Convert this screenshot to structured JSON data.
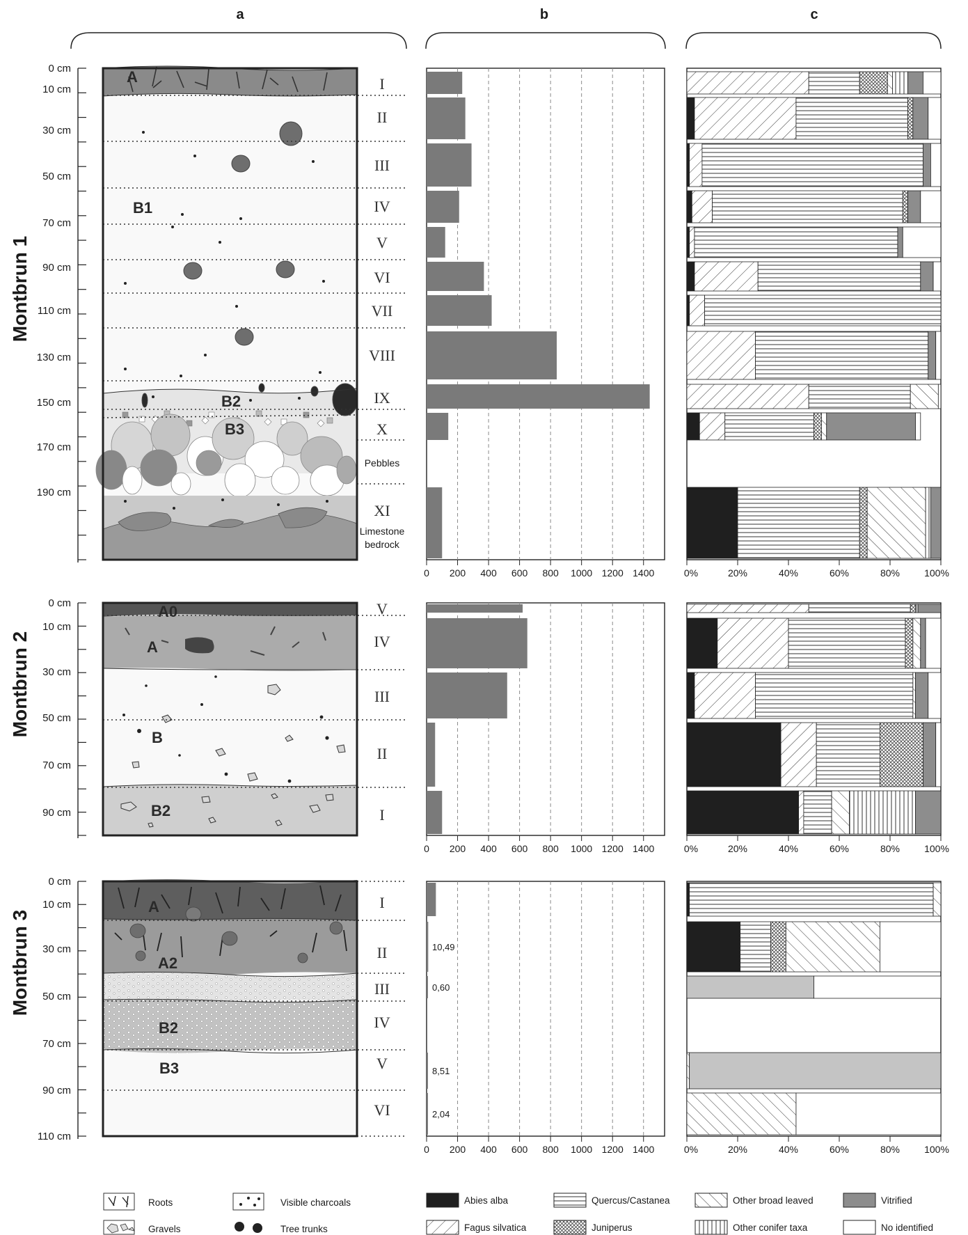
{
  "columns": {
    "a": "a",
    "b": "b",
    "c": "c"
  },
  "colors": {
    "abies": "#1f1f1f",
    "vitrified": "#8d8d8d",
    "count_bar": "#7a7a7a",
    "vitrified_m3": "#c4c4c4",
    "no_identified": "#ffffff"
  },
  "sites": [
    {
      "title": "Montbrun 1",
      "depth_labels": [
        {
          "text": "0 cm",
          "cm": 0
        },
        {
          "text": "10 cm",
          "cm": 10
        },
        {
          "text": "30 cm",
          "cm": 30
        },
        {
          "text": "50 cm",
          "cm": 50
        },
        {
          "text": "70 cm",
          "cm": 70
        },
        {
          "text": "90 cm",
          "cm": 90
        },
        {
          "text": "110 cm",
          "cm": 110
        },
        {
          "text": "130 cm",
          "cm": 130
        },
        {
          "text": "150 cm",
          "cm": 150
        },
        {
          "text": "170 cm",
          "cm": 170
        },
        {
          "text": "190 cm",
          "cm": 190
        }
      ],
      "horizons": [
        "A",
        "B1",
        "B2",
        "B3"
      ],
      "levels": [
        "I",
        "II",
        "III",
        "IV",
        "V",
        "VI",
        "VII",
        "VIII",
        "IX",
        "X",
        "XI"
      ],
      "notes": {
        "pebbles": "Pebbles",
        "limestone_1": "Limestone",
        "limestone_2": "bedrock"
      }
    },
    {
      "title": "Montbrun 2",
      "depth_labels": [
        {
          "text": "0 cm",
          "cm": 0
        },
        {
          "text": "10 cm",
          "cm": 10
        },
        {
          "text": "30 cm",
          "cm": 30
        },
        {
          "text": "50 cm",
          "cm": 50
        },
        {
          "text": "70 cm",
          "cm": 70
        },
        {
          "text": "90 cm",
          "cm": 90
        }
      ],
      "horizons": [
        "A0",
        "A",
        "B",
        "B2"
      ],
      "levels": [
        "V",
        "IV",
        "III",
        "II",
        "I"
      ]
    },
    {
      "title": "Montbrun 3",
      "depth_labels": [
        {
          "text": "0 cm",
          "cm": 0
        },
        {
          "text": "10 cm",
          "cm": 10
        },
        {
          "text": "30 cm",
          "cm": 30
        },
        {
          "text": "50 cm",
          "cm": 50
        },
        {
          "text": "70 cm",
          "cm": 70
        },
        {
          "text": "90 cm",
          "cm": 90
        },
        {
          "text": "110 cm",
          "cm": 110
        }
      ],
      "horizons": [
        "A",
        "A2",
        "B2",
        "B3"
      ],
      "levels": [
        "I",
        "II",
        "III",
        "IV",
        "V",
        "VI"
      ]
    }
  ],
  "chart_data": [
    {
      "type": "bar",
      "site": "Montbrun 1",
      "categories": [
        "I",
        "II",
        "III",
        "IV",
        "V",
        "VI",
        "VII",
        "VIII",
        "IX",
        "X",
        "XI"
      ],
      "values": [
        230,
        250,
        290,
        210,
        120,
        370,
        420,
        840,
        1440,
        140,
        100
      ],
      "xlim": [
        0,
        1500
      ],
      "xticks": [
        "0",
        "200",
        "400",
        "600",
        "800",
        "1000",
        "1200",
        "1400"
      ],
      "grid": true
    },
    {
      "type": "bar",
      "site": "Montbrun 2",
      "categories": [
        "V",
        "IV",
        "III",
        "II",
        "I"
      ],
      "values": [
        620,
        650,
        520,
        55,
        100
      ],
      "xlim": [
        0,
        1500
      ],
      "xticks": [
        "0",
        "200",
        "400",
        "600",
        "800",
        "1000",
        "1200",
        "1400"
      ],
      "grid": true
    },
    {
      "type": "bar",
      "site": "Montbrun 3",
      "categories": [
        "I",
        "II",
        "III",
        "IV",
        "V",
        "VI"
      ],
      "values": [
        60,
        10.49,
        0.6,
        0,
        8.51,
        2.04
      ],
      "data_labels": [
        "",
        "10,49",
        "0,60",
        "",
        "8,51",
        "2,04"
      ],
      "xlim": [
        0,
        1500
      ],
      "xticks": [
        "0",
        "200",
        "400",
        "600",
        "800",
        "1000",
        "1200",
        "1400"
      ],
      "grid": true
    },
    {
      "type": "bar",
      "stacked": true,
      "site": "Montbrun 1",
      "unit": "%",
      "categories": [
        "I",
        "II",
        "III",
        "IV",
        "V",
        "VI",
        "VII",
        "VIII",
        "IX",
        "X",
        "Pebbles",
        "XI"
      ],
      "taxa": [
        "Abies alba",
        "Fagus silvatica",
        "Quercus/Castanea",
        "Juniperus",
        "Other broad leaved",
        "Other conifer taxa",
        "Vitrified",
        "No identified"
      ],
      "rows": [
        [
          0,
          48,
          20,
          11,
          2,
          6,
          6,
          7
        ],
        [
          3,
          40,
          44,
          2,
          0,
          0,
          6,
          5
        ],
        [
          1,
          5,
          87,
          0,
          0,
          0,
          3,
          4
        ],
        [
          2,
          8,
          75,
          2,
          0,
          0,
          5,
          8
        ],
        [
          1,
          2,
          80,
          0,
          0,
          0,
          2,
          15
        ],
        [
          3,
          25,
          64,
          0,
          0,
          0,
          5,
          3
        ],
        [
          1,
          6,
          93,
          0,
          0,
          0,
          0,
          0
        ],
        [
          0,
          27,
          68,
          0,
          0,
          0,
          3,
          2
        ],
        [
          0,
          48,
          40,
          0,
          11,
          0,
          0,
          1
        ],
        [
          5,
          10,
          35,
          3,
          2,
          0,
          35,
          2
        ],
        [
          0,
          0,
          0,
          0,
          0,
          0,
          0,
          0
        ],
        [
          20,
          0,
          48,
          3,
          23,
          2,
          4,
          0
        ]
      ],
      "xticks": [
        "0%",
        "20%",
        "40%",
        "60%",
        "80%",
        "100%"
      ]
    },
    {
      "type": "bar",
      "stacked": true,
      "site": "Montbrun 2",
      "unit": "%",
      "categories": [
        "V",
        "IV",
        "III",
        "II",
        "I"
      ],
      "taxa": [
        "Abies alba",
        "Fagus silvatica",
        "Quercus/Castanea",
        "Juniperus",
        "Other broad leaved",
        "Other conifer taxa",
        "Vitrified",
        "No identified"
      ],
      "rows": [
        [
          0,
          48,
          40,
          2,
          0,
          1,
          9,
          0
        ],
        [
          12,
          28,
          46,
          3,
          3,
          0,
          2,
          6
        ],
        [
          3,
          24,
          62,
          0,
          1,
          0,
          5,
          5
        ],
        [
          37,
          14,
          25,
          17,
          0,
          0,
          5,
          2
        ],
        [
          44,
          2,
          11,
          0,
          7,
          26,
          10,
          0
        ]
      ],
      "xticks": [
        "0%",
        "20%",
        "40%",
        "60%",
        "80%",
        "100%"
      ]
    },
    {
      "type": "bar",
      "stacked": true,
      "site": "Montbrun 3",
      "unit": "%",
      "categories": [
        "I",
        "II",
        "III",
        "IV",
        "V",
        "VI"
      ],
      "taxa": [
        "Abies alba",
        "Fagus silvatica",
        "Quercus/Castanea",
        "Juniperus",
        "Other broad leaved",
        "Other conifer taxa",
        "Vitrified",
        "No identified"
      ],
      "rows": [
        [
          1,
          0,
          96,
          0,
          3,
          0,
          0,
          0
        ],
        [
          21,
          0,
          12,
          6,
          37,
          0,
          0,
          24
        ],
        [
          0,
          0,
          0,
          0,
          0,
          0,
          50,
          50
        ],
        [
          0,
          0,
          0,
          0,
          0,
          0,
          0,
          0
        ],
        [
          0,
          0,
          0,
          0,
          1,
          0,
          99,
          0
        ],
        [
          0,
          0,
          0,
          0,
          43,
          0,
          0,
          57
        ]
      ],
      "xticks": [
        "0%",
        "20%",
        "40%",
        "60%",
        "80%",
        "100%"
      ]
    }
  ],
  "legend": {
    "profile_symbols": [
      "Roots",
      "Visible charcoals",
      "Gravels",
      "Tree trunks"
    ],
    "taxa": [
      "Abies alba",
      "Quercus/Castanea",
      "Other broad leaved",
      "Vitrified",
      "Fagus silvatica",
      "Juniperus",
      "Other conifer taxa",
      "No identified"
    ]
  }
}
